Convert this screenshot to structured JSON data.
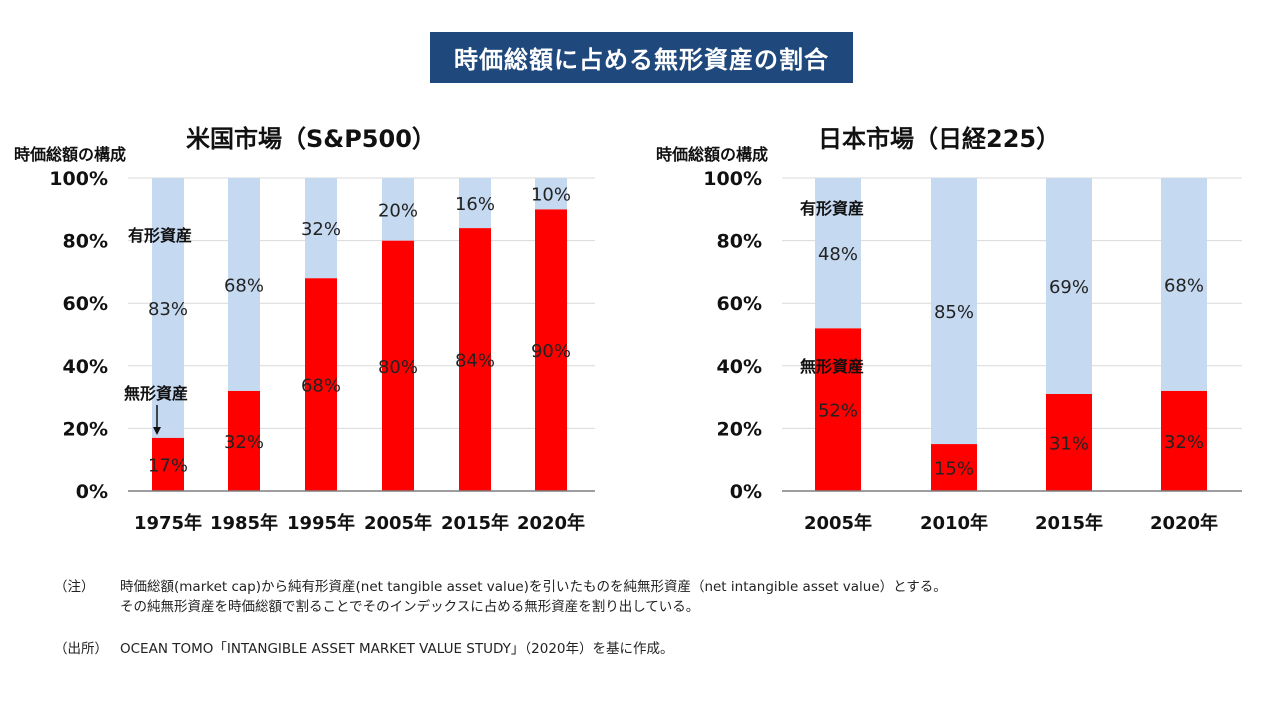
{
  "page_title": "時価総額に占める無形資産の割合",
  "colors": {
    "banner": "#1F497D",
    "intangible": "#FF0000",
    "tangible": "#C5D9F1",
    "grid": "#D9D9D9",
    "axis": "#7F7F7F"
  },
  "chart_data": [
    {
      "type": "bar",
      "stacked": true,
      "title": "米国市場（S&P500）",
      "ylabel": "時価総額の構成",
      "ylim": [
        0,
        100
      ],
      "yticks": [
        "0%",
        "20%",
        "40%",
        "60%",
        "80%",
        "100%"
      ],
      "grid": true,
      "categories": [
        "1975年",
        "1985年",
        "1995年",
        "2005年",
        "2015年",
        "2020年"
      ],
      "series": [
        {
          "name": "無形資産",
          "color": "#FF0000",
          "values": [
            17,
            32,
            68,
            80,
            84,
            90
          ],
          "labels": [
            "17%",
            "32%",
            "68%",
            "80%",
            "84%",
            "90%"
          ]
        },
        {
          "name": "有形資産",
          "color": "#C5D9F1",
          "values": [
            83,
            68,
            32,
            20,
            16,
            10
          ],
          "labels": [
            "83%",
            "68%",
            "32%",
            "20%",
            "16%",
            "10%"
          ]
        }
      ]
    },
    {
      "type": "bar",
      "stacked": true,
      "title": "日本市場（日経225）",
      "ylabel": "時価総額の構成",
      "ylim": [
        0,
        100
      ],
      "yticks": [
        "0%",
        "20%",
        "40%",
        "60%",
        "80%",
        "100%"
      ],
      "grid": true,
      "categories": [
        "2005年",
        "2010年",
        "2015年",
        "2020年"
      ],
      "series": [
        {
          "name": "無形資産",
          "color": "#FF0000",
          "values": [
            52,
            15,
            31,
            32
          ],
          "labels": [
            "52%",
            "15%",
            "31%",
            "32%"
          ]
        },
        {
          "name": "有形資産",
          "color": "#C5D9F1",
          "values": [
            48,
            85,
            69,
            68
          ],
          "labels": [
            "48%",
            "85%",
            "69%",
            "68%"
          ]
        }
      ]
    }
  ],
  "notes": {
    "note_label": "（注）",
    "note_line1": "時価総額(market cap)から純有形資産(net tangible asset value)を引いたものを純無形資産（net intangible asset value）とする。",
    "note_line2": "その純無形資産を時価総額で割ることでそのインデックスに占める無形資産を割り出している。",
    "source_label": "（出所）",
    "source_text": "OCEAN TOMO「INTANGIBLE ASSET MARKET VALUE STUDY」（2020年）を基に作成。"
  }
}
